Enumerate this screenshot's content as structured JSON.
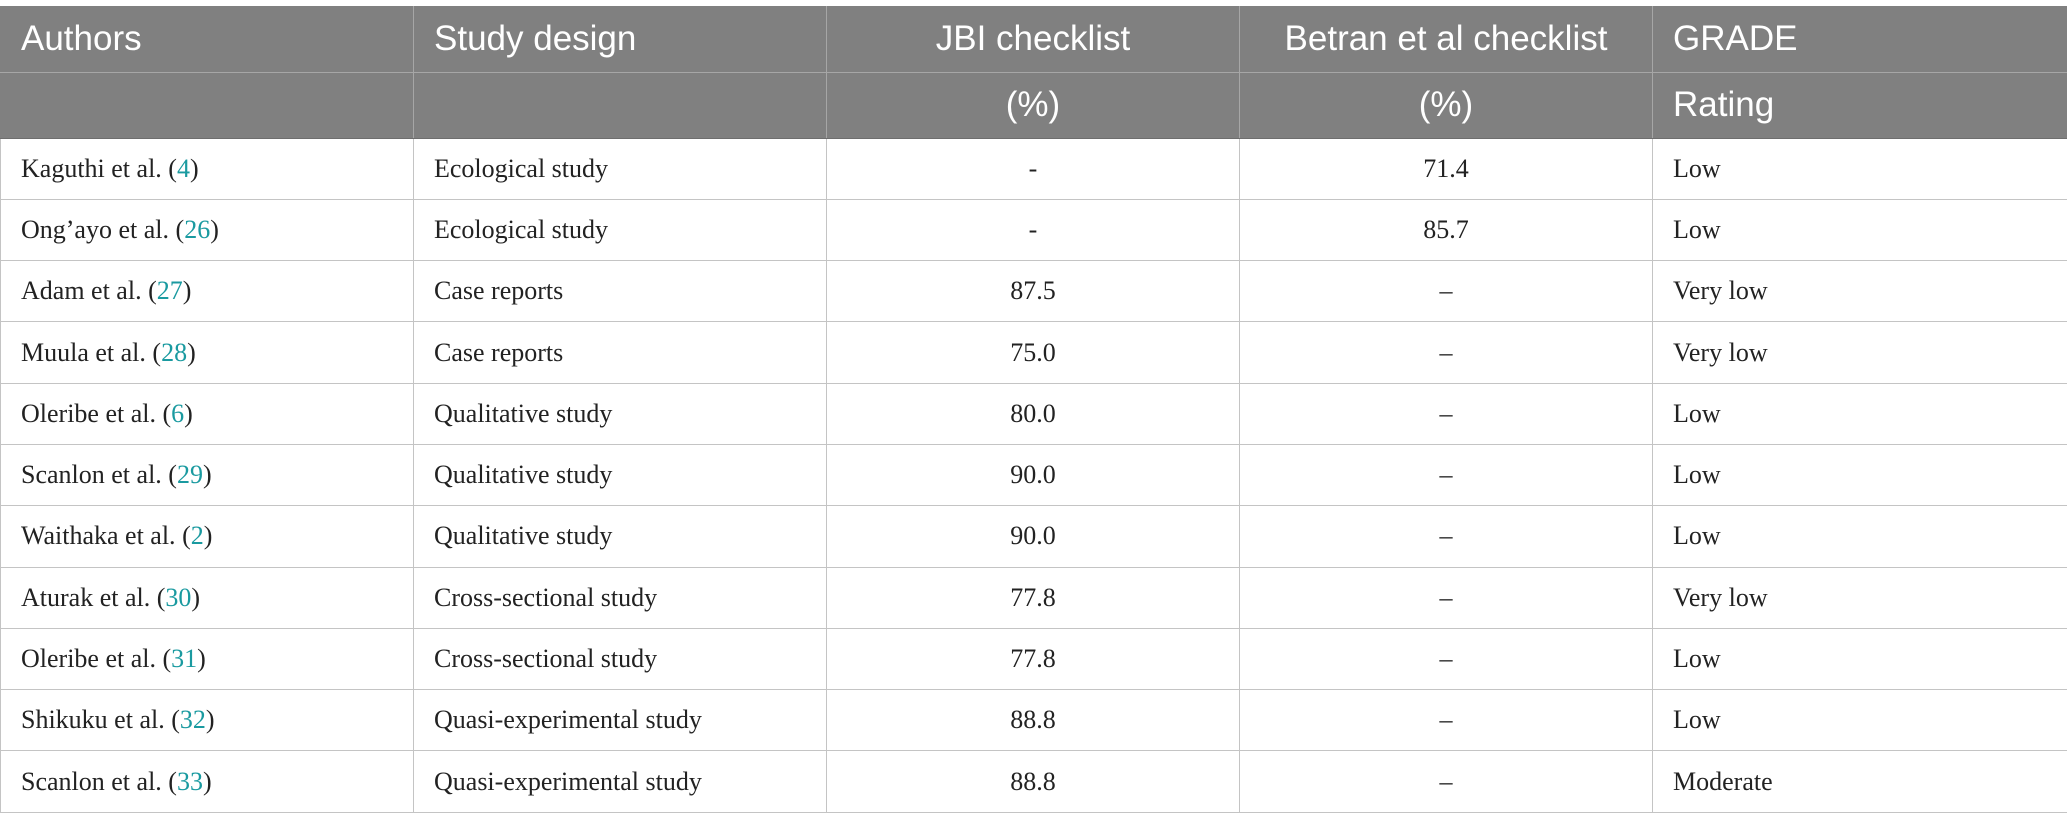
{
  "header": {
    "row1": [
      "Authors",
      "Study design",
      "JBI checklist",
      "Betran et al checklist",
      "GRADE"
    ],
    "row2": [
      "",
      "",
      "(%)",
      "(%)",
      "Rating"
    ]
  },
  "rows": [
    {
      "author": "Kaguthi et al.",
      "ref": "4",
      "design": "Ecological study",
      "jbi": "-",
      "betran": "71.4",
      "grade": "Low"
    },
    {
      "author": "Ong’ayo et al.",
      "ref": "26",
      "design": "Ecological study",
      "jbi": "-",
      "betran": "85.7",
      "grade": "Low"
    },
    {
      "author": "Adam et al.",
      "ref": "27",
      "design": "Case reports",
      "jbi": "87.5",
      "betran": "–",
      "grade": "Very low"
    },
    {
      "author": "Muula et al.",
      "ref": "28",
      "design": "Case reports",
      "jbi": "75.0",
      "betran": "–",
      "grade": "Very low"
    },
    {
      "author": "Oleribe et al.",
      "ref": "6",
      "design": "Qualitative study",
      "jbi": "80.0",
      "betran": "–",
      "grade": "Low"
    },
    {
      "author": "Scanlon et al.",
      "ref": "29",
      "design": "Qualitative study",
      "jbi": "90.0",
      "betran": "–",
      "grade": "Low"
    },
    {
      "author": "Waithaka et al.",
      "ref": "2",
      "design": "Qualitative study",
      "jbi": "90.0",
      "betran": "–",
      "grade": "Low"
    },
    {
      "author": "Aturak et al.",
      "ref": "30",
      "design": "Cross-sectional study",
      "jbi": "77.8",
      "betran": "–",
      "grade": "Very low"
    },
    {
      "author": "Oleribe et al.",
      "ref": "31",
      "design": "Cross-sectional study",
      "jbi": "77.8",
      "betran": "–",
      "grade": "Low"
    },
    {
      "author": "Shikuku et al.",
      "ref": "32",
      "design": "Quasi-experimental study",
      "jbi": "88.8",
      "betran": "–",
      "grade": "Low"
    },
    {
      "author": "Scanlon et al.",
      "ref": "33",
      "design": "Quasi-experimental study",
      "jbi": "88.8",
      "betran": "–",
      "grade": "Moderate"
    }
  ]
}
